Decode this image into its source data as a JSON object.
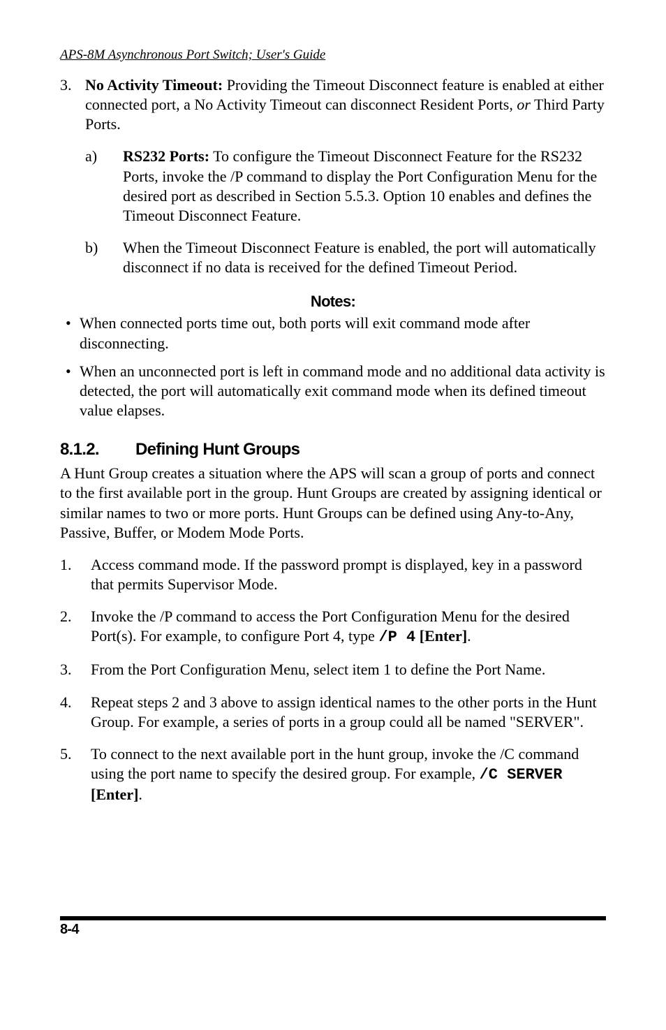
{
  "running_head": "APS-8M Asynchronous Port Switch; User's Guide",
  "item3": {
    "num": "3.",
    "lead_bold": "No Activity Timeout:",
    "text": "  Providing the Timeout Disconnect feature is enabled at either connected port, a No Activity Timeout can disconnect Resident Ports, ",
    "italic": "or",
    "tail": " Third Party Ports.",
    "a": {
      "num": "a)",
      "bold": "RS232 Ports:",
      "text": "  To configure the Timeout Disconnect Feature for the RS232 Ports, invoke the /P command to display the Port Configuration Menu for the desired port as described in Section 5.5.3.  Option 10 enables and defines the Timeout Disconnect Feature."
    },
    "b": {
      "num": "b)",
      "text": "When the Timeout Disconnect Feature is enabled, the port will automatically disconnect if no data is received for the defined Timeout Period."
    }
  },
  "notes_heading": "Notes:",
  "notes": {
    "n1": "When connected ports time out, both ports will exit command mode after disconnecting.",
    "n2": "When an unconnected port is left in command mode and no additional data activity is detected, the port will automatically exit command mode when its defined timeout value elapses."
  },
  "section": {
    "num": "8.1.2.",
    "title": "Defining Hunt Groups"
  },
  "intro": "A Hunt Group creates a situation where the APS will scan a group of ports and connect to the first available port in the group.  Hunt Groups are created by assigning identical or similar names to two or more ports.  Hunt Groups can be defined using Any-to-Any, Passive, Buffer, or Modem Mode Ports.",
  "steps": {
    "s1": {
      "num": "1.",
      "text": "Access command mode.  If the password prompt is displayed, key in a password that permits Supervisor Mode."
    },
    "s2": {
      "num": "2.",
      "pre": "Invoke the /P command to access the Port Configuration Menu for the desired Port(s).  For example, to configure Port 4, type ",
      "code": "/P 4",
      "post_bold": " [Enter]",
      "tail": "."
    },
    "s3": {
      "num": "3.",
      "text": "From the Port Configuration Menu, select item 1 to define the Port Name."
    },
    "s4": {
      "num": "4.",
      "text": "Repeat steps 2 and 3 above to assign identical names to the other ports in the Hunt Group.  For example, a series of ports in a group could all be named \"SERVER\"."
    },
    "s5": {
      "num": "5.",
      "pre": "To connect to the next available port in the hunt group, invoke the /C command using the port name to specify the desired group.  For example, ",
      "code": "/C SERVER",
      "post_bold": " [Enter]",
      "tail": "."
    }
  },
  "pagenum": "8-4"
}
